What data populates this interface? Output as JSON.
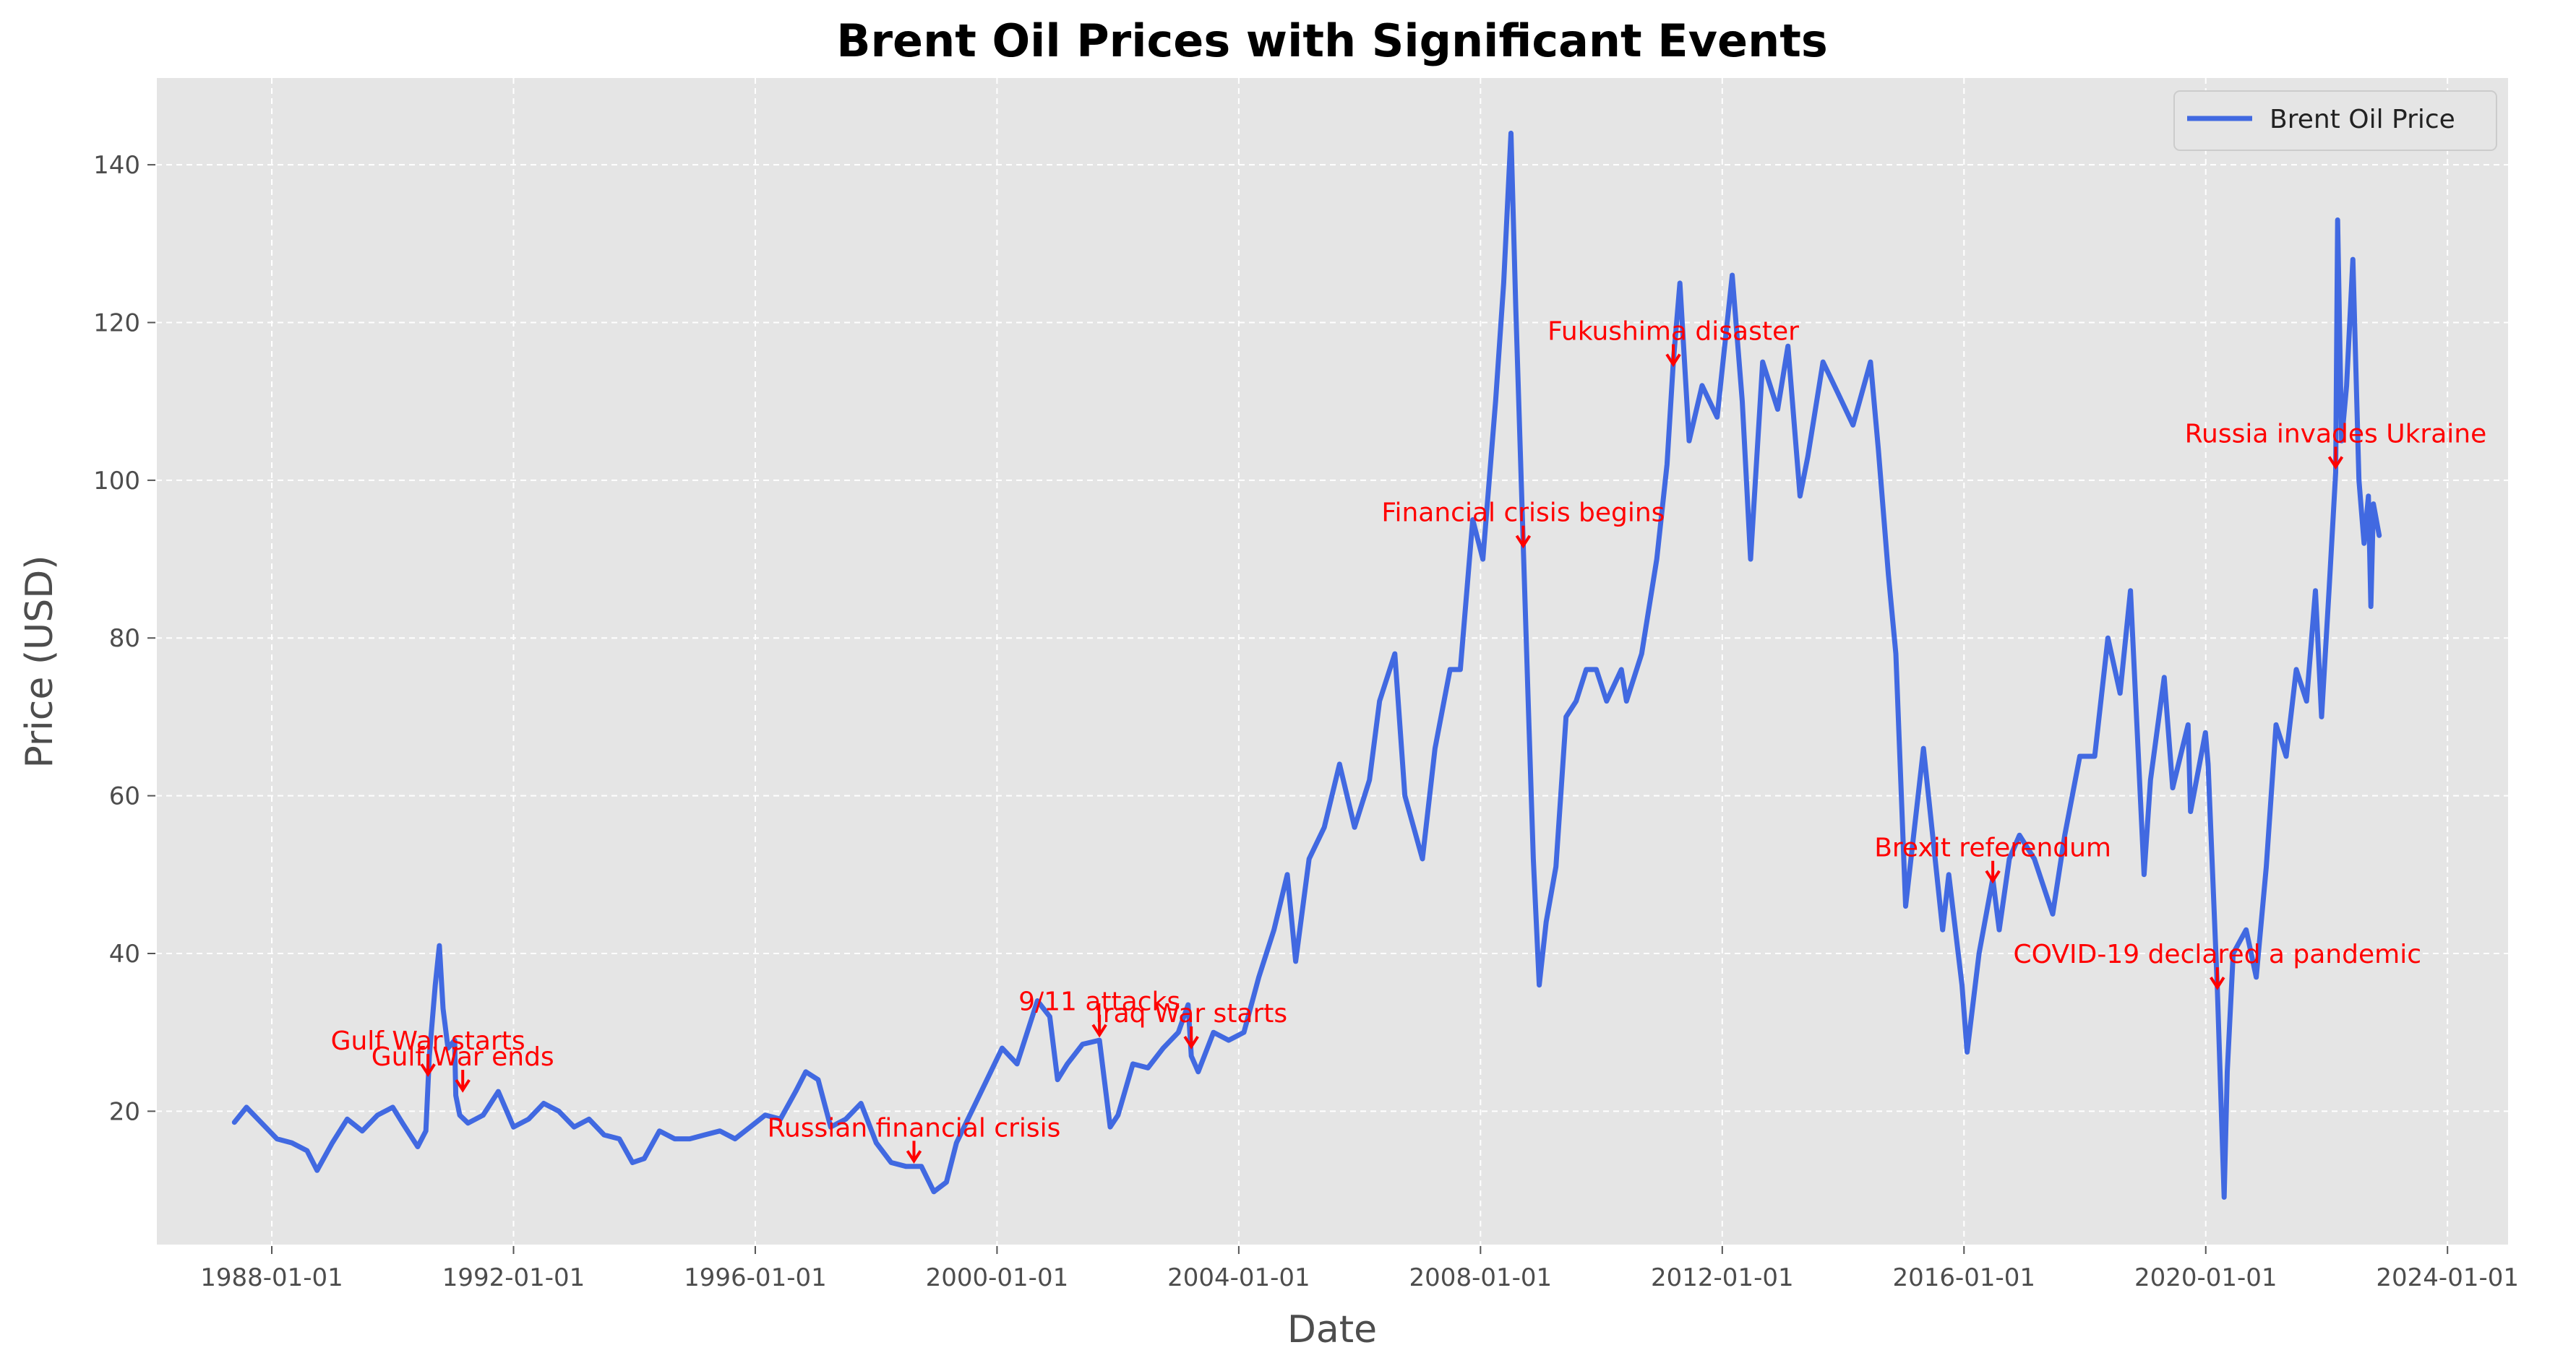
{
  "colors": {
    "series": "#4169e1",
    "annotation": "#ff0000",
    "plot_bg": "#e5e5e5",
    "grid": "#ffffff"
  },
  "chart_data": {
    "type": "line",
    "title": "Brent Oil Prices with Significant Events",
    "xlabel": "Date",
    "ylabel": "Price (USD)",
    "xlim": [
      "1986-02-01",
      "2025-01-01"
    ],
    "ylim": [
      3,
      151
    ],
    "x_ticks": [
      "1988-01-01",
      "1992-01-01",
      "1996-01-01",
      "2000-01-01",
      "2004-01-01",
      "2008-01-01",
      "2012-01-01",
      "2016-01-01",
      "2020-01-01",
      "2024-01-01"
    ],
    "y_ticks": [
      20,
      40,
      60,
      80,
      100,
      120,
      140
    ],
    "grid": true,
    "legend": {
      "position": "top-right",
      "entries": [
        "Brent Oil Price"
      ]
    },
    "series": [
      {
        "name": "Brent Oil Price",
        "points": [
          [
            "1987-05-20",
            18.6
          ],
          [
            "1987-08-01",
            20.5
          ],
          [
            "1987-11-01",
            18.5
          ],
          [
            "1988-02-01",
            16.5
          ],
          [
            "1988-05-01",
            16.0
          ],
          [
            "1988-08-01",
            15.0
          ],
          [
            "1988-10-01",
            12.5
          ],
          [
            "1989-01-01",
            16.0
          ],
          [
            "1989-04-01",
            19.0
          ],
          [
            "1989-07-01",
            17.5
          ],
          [
            "1989-10-01",
            19.5
          ],
          [
            "1990-01-01",
            20.5
          ],
          [
            "1990-03-01",
            18.5
          ],
          [
            "1990-06-01",
            15.5
          ],
          [
            "1990-07-20",
            17.5
          ],
          [
            "1990-08-10",
            27.0
          ],
          [
            "1990-09-15",
            36.0
          ],
          [
            "1990-10-10",
            41.0
          ],
          [
            "1990-11-01",
            33.0
          ],
          [
            "1990-12-01",
            28.0
          ],
          [
            "1991-01-10",
            29.0
          ],
          [
            "1991-01-17",
            22.0
          ],
          [
            "1991-02-10",
            19.5
          ],
          [
            "1991-04-01",
            18.5
          ],
          [
            "1991-07-01",
            19.5
          ],
          [
            "1991-10-01",
            22.5
          ],
          [
            "1992-01-01",
            18.0
          ],
          [
            "1992-04-01",
            19.0
          ],
          [
            "1992-07-01",
            21.0
          ],
          [
            "1992-10-01",
            20.0
          ],
          [
            "1993-01-01",
            18.0
          ],
          [
            "1993-04-01",
            19.0
          ],
          [
            "1993-07-01",
            17.0
          ],
          [
            "1993-10-01",
            16.5
          ],
          [
            "1993-12-20",
            13.5
          ],
          [
            "1994-03-01",
            14.0
          ],
          [
            "1994-06-01",
            17.5
          ],
          [
            "1994-09-01",
            16.5
          ],
          [
            "1994-12-01",
            16.5
          ],
          [
            "1995-03-01",
            17.0
          ],
          [
            "1995-06-01",
            17.5
          ],
          [
            "1995-09-01",
            16.5
          ],
          [
            "1995-12-01",
            18.0
          ],
          [
            "1996-03-01",
            19.5
          ],
          [
            "1996-06-01",
            19.0
          ],
          [
            "1996-09-01",
            22.5
          ],
          [
            "1996-11-01",
            25.0
          ],
          [
            "1997-01-15",
            24.0
          ],
          [
            "1997-04-01",
            18.0
          ],
          [
            "1997-07-01",
            19.0
          ],
          [
            "1997-10-01",
            21.0
          ],
          [
            "1998-01-01",
            16.0
          ],
          [
            "1998-04-01",
            13.5
          ],
          [
            "1998-07-01",
            13.0
          ],
          [
            "1998-10-01",
            13.0
          ],
          [
            "1998-12-15",
            9.8
          ],
          [
            "1999-03-01",
            11.0
          ],
          [
            "1999-05-01",
            16.0
          ],
          [
            "1999-08-01",
            20.0
          ],
          [
            "1999-11-01",
            24.0
          ],
          [
            "2000-02-01",
            28.0
          ],
          [
            "2000-05-01",
            26.0
          ],
          [
            "2000-09-01",
            34.0
          ],
          [
            "2000-11-15",
            32.0
          ],
          [
            "2001-01-01",
            24.0
          ],
          [
            "2001-03-01",
            26.0
          ],
          [
            "2001-06-01",
            28.5
          ],
          [
            "2001-09-11",
            29.0
          ],
          [
            "2001-11-15",
            18.0
          ],
          [
            "2002-01-01",
            19.5
          ],
          [
            "2002-04-01",
            26.0
          ],
          [
            "2002-07-01",
            25.5
          ],
          [
            "2002-10-01",
            28.0
          ],
          [
            "2003-01-01",
            30.0
          ],
          [
            "2003-03-01",
            33.5
          ],
          [
            "2003-03-20",
            27.0
          ],
          [
            "2003-05-01",
            25.0
          ],
          [
            "2003-08-01",
            30.0
          ],
          [
            "2003-11-01",
            29.0
          ],
          [
            "2004-02-01",
            30.0
          ],
          [
            "2004-05-01",
            37.0
          ],
          [
            "2004-08-01",
            43.0
          ],
          [
            "2004-10-20",
            50.0
          ],
          [
            "2004-12-10",
            39.0
          ],
          [
            "2005-03-01",
            52.0
          ],
          [
            "2005-06-01",
            56.0
          ],
          [
            "2005-09-01",
            64.0
          ],
          [
            "2005-12-01",
            56.0
          ],
          [
            "2006-03-01",
            62.0
          ],
          [
            "2006-05-01",
            72.0
          ],
          [
            "2006-08-01",
            78.0
          ],
          [
            "2006-10-01",
            60.0
          ],
          [
            "2007-01-15",
            52.0
          ],
          [
            "2007-04-01",
            66.0
          ],
          [
            "2007-07-01",
            76.0
          ],
          [
            "2007-09-01",
            76.0
          ],
          [
            "2007-11-15",
            95.0
          ],
          [
            "2008-01-15",
            90.0
          ],
          [
            "2008-04-01",
            110.0
          ],
          [
            "2008-05-20",
            125.0
          ],
          [
            "2008-07-03",
            144.0
          ],
          [
            "2008-08-01",
            122.0
          ],
          [
            "2008-09-15",
            92.0
          ],
          [
            "2008-10-15",
            72.0
          ],
          [
            "2008-11-15",
            52.0
          ],
          [
            "2008-12-21",
            36.0
          ],
          [
            "2009-02-01",
            44.0
          ],
          [
            "2009-04-01",
            51.0
          ],
          [
            "2009-06-01",
            70.0
          ],
          [
            "2009-08-01",
            72.0
          ],
          [
            "2009-10-01",
            76.0
          ],
          [
            "2009-12-01",
            76.0
          ],
          [
            "2010-02-01",
            72.0
          ],
          [
            "2010-05-01",
            76.0
          ],
          [
            "2010-06-01",
            72.0
          ],
          [
            "2010-09-01",
            78.0
          ],
          [
            "2010-12-01",
            90.0
          ],
          [
            "2011-02-01",
            102.0
          ],
          [
            "2011-03-11",
            115.0
          ],
          [
            "2011-04-20",
            125.0
          ],
          [
            "2011-06-15",
            105.0
          ],
          [
            "2011-09-01",
            112.0
          ],
          [
            "2011-12-01",
            108.0
          ],
          [
            "2012-03-01",
            126.0
          ],
          [
            "2012-05-01",
            110.0
          ],
          [
            "2012-06-20",
            90.0
          ],
          [
            "2012-09-01",
            115.0
          ],
          [
            "2012-12-01",
            109.0
          ],
          [
            "2013-02-01",
            117.0
          ],
          [
            "2013-04-15",
            98.0
          ],
          [
            "2013-06-01",
            103.0
          ],
          [
            "2013-09-01",
            115.0
          ],
          [
            "2013-12-01",
            111.0
          ],
          [
            "2014-03-01",
            107.0
          ],
          [
            "2014-06-15",
            115.0
          ],
          [
            "2014-08-01",
            104.0
          ],
          [
            "2014-10-01",
            88.0
          ],
          [
            "2014-11-15",
            78.0
          ],
          [
            "2015-01-13",
            46.0
          ],
          [
            "2015-05-01",
            66.0
          ],
          [
            "2015-08-25",
            43.0
          ],
          [
            "2015-10-01",
            50.0
          ],
          [
            "2015-12-20",
            36.0
          ],
          [
            "2016-01-20",
            27.5
          ],
          [
            "2016-04-01",
            40.0
          ],
          [
            "2016-06-23",
            49.5
          ],
          [
            "2016-08-01",
            43.0
          ],
          [
            "2016-10-01",
            52.0
          ],
          [
            "2016-12-01",
            55.0
          ],
          [
            "2017-03-01",
            52.0
          ],
          [
            "2017-06-20",
            45.0
          ],
          [
            "2017-09-01",
            55.0
          ],
          [
            "2017-12-01",
            65.0
          ],
          [
            "2018-03-01",
            65.0
          ],
          [
            "2018-05-20",
            80.0
          ],
          [
            "2018-08-01",
            73.0
          ],
          [
            "2018-10-03",
            86.0
          ],
          [
            "2018-12-24",
            50.0
          ],
          [
            "2019-02-01",
            62.0
          ],
          [
            "2019-04-25",
            75.0
          ],
          [
            "2019-06-15",
            61.0
          ],
          [
            "2019-09-16",
            69.0
          ],
          [
            "2019-10-01",
            58.0
          ],
          [
            "2019-12-30",
            68.0
          ],
          [
            "2020-01-15",
            64.0
          ],
          [
            "2020-03-11",
            35.5
          ],
          [
            "2020-04-21",
            9.1
          ],
          [
            "2020-05-10",
            25.0
          ],
          [
            "2020-06-15",
            40.0
          ],
          [
            "2020-09-01",
            43.0
          ],
          [
            "2020-11-01",
            37.0
          ],
          [
            "2021-01-01",
            51.0
          ],
          [
            "2021-03-01",
            69.0
          ],
          [
            "2021-05-01",
            65.0
          ],
          [
            "2021-07-01",
            76.0
          ],
          [
            "2021-09-01",
            72.0
          ],
          [
            "2021-10-25",
            86.0
          ],
          [
            "2021-12-01",
            70.0
          ],
          [
            "2022-01-15",
            86.0
          ],
          [
            "2022-02-24",
            101.0
          ],
          [
            "2022-03-08",
            133.0
          ],
          [
            "2022-04-01",
            105.0
          ],
          [
            "2022-05-01",
            112.0
          ],
          [
            "2022-06-08",
            128.0
          ],
          [
            "2022-07-15",
            100.0
          ],
          [
            "2022-08-15",
            92.0
          ],
          [
            "2022-09-10",
            98.0
          ],
          [
            "2022-09-25",
            84.0
          ],
          [
            "2022-10-10",
            97.0
          ],
          [
            "2022-11-14",
            93.0
          ]
        ]
      }
    ],
    "events": [
      {
        "label": "Gulf War starts",
        "date": "1990-08-02",
        "y": 24.5
      },
      {
        "label": "Gulf War ends",
        "date": "1991-02-28",
        "y": 22.5
      },
      {
        "label": "Russian financial crisis",
        "date": "1998-08-17",
        "y": 13.5
      },
      {
        "label": "9/11 attacks",
        "date": "2001-09-11",
        "y": 29.5
      },
      {
        "label": "Iraq War starts",
        "date": "2003-03-20",
        "y": 28.0
      },
      {
        "label": "Financial crisis begins",
        "date": "2008-09-15",
        "y": 91.5
      },
      {
        "label": "Fukushima disaster",
        "date": "2011-03-11",
        "y": 114.5
      },
      {
        "label": "Brexit referendum",
        "date": "2016-06-23",
        "y": 49.0
      },
      {
        "label": "COVID-19 declared a pandemic",
        "date": "2020-03-11",
        "y": 35.5
      },
      {
        "label": "Russia invades Ukraine",
        "date": "2022-02-24",
        "y": 101.5
      }
    ]
  }
}
